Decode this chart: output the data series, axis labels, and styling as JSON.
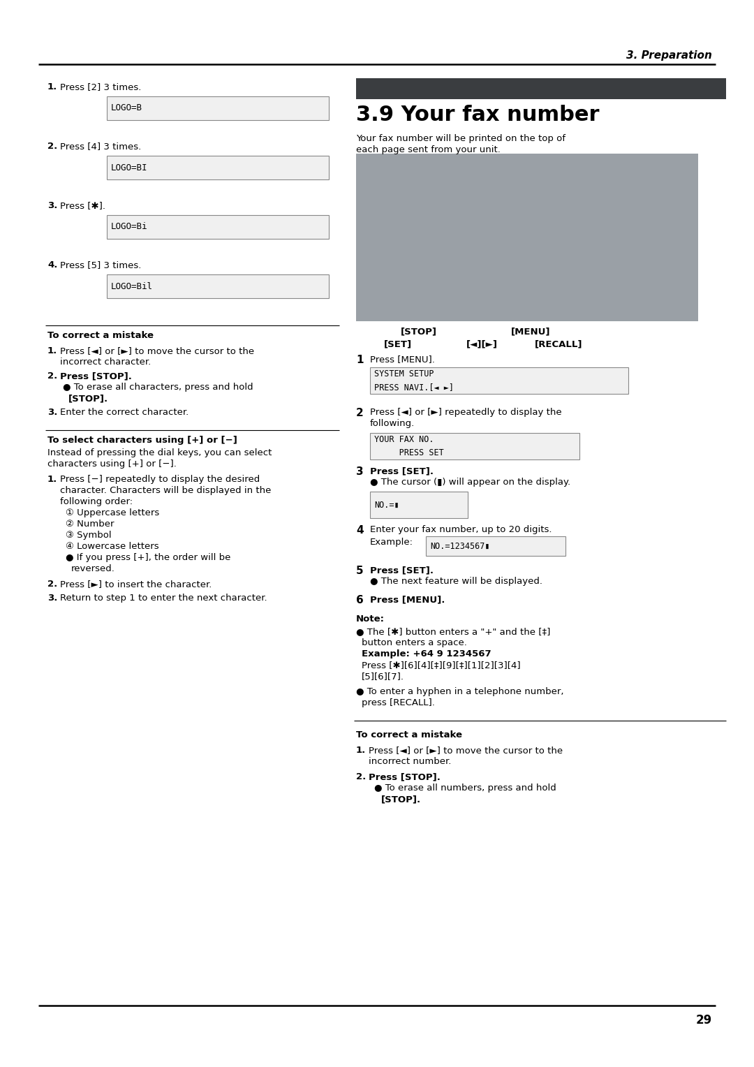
{
  "chapter_header": "3. Preparation",
  "section_title": "3.9 Your fax number",
  "section_subtitle_1": "Your fax number will be printed on the top of",
  "section_subtitle_2": "each page sent from your unit.",
  "page_number": "29",
  "left_steps_displays": [
    "LOGO=B",
    "LOGO=BI",
    "LOGO=Bi",
    "LOGO=Bil"
  ],
  "left_steps_bold": [
    "[2]",
    "[4]",
    "[✱]",
    "[5]"
  ],
  "right_disp_1": "SYSTEM SETUP\nPRESS NAVI.[◄ ►]",
  "right_disp_2": "YOUR FAX NO.\n     PRESS SET",
  "right_disp_3": "NO.=▮",
  "right_disp_4": "NO.=1234567▮",
  "dark_bar_color": "#3a3d40",
  "mono_border": "#888888",
  "mono_bg": "#f0f0f0",
  "device_bg": "#9aa0a6"
}
